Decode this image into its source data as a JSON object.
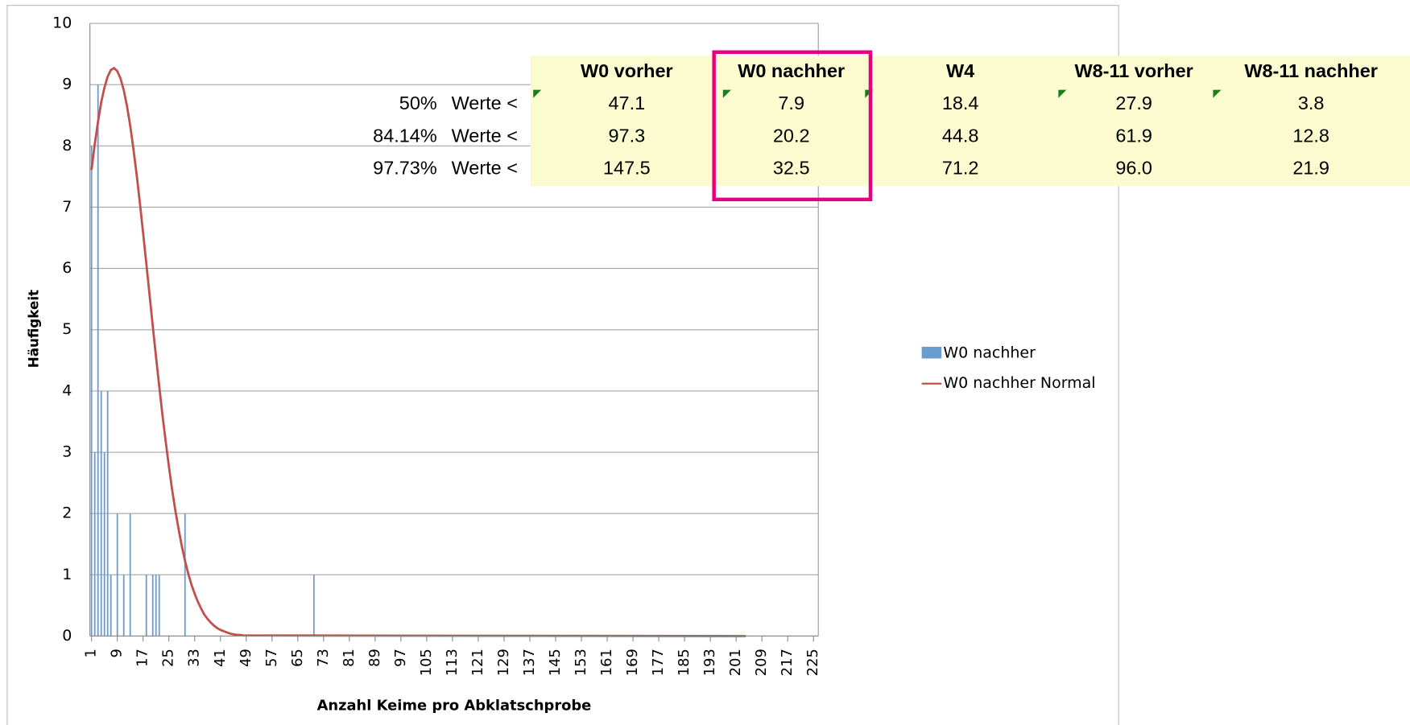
{
  "chart_data": {
    "type": "bar",
    "xlabel": "Anzahl Keime pro Abklatschprobe",
    "ylabel": "Häufigkeit",
    "xlim": [
      0.5,
      226.5
    ],
    "xticks": [
      1,
      9,
      17,
      25,
      33,
      41,
      49,
      57,
      65,
      73,
      81,
      89,
      97,
      105,
      113,
      121,
      129,
      137,
      145,
      153,
      161,
      169,
      177,
      185,
      193,
      201,
      209,
      217,
      225
    ],
    "ylim": [
      0,
      10
    ],
    "yticks": [
      0,
      1,
      2,
      3,
      4,
      5,
      6,
      7,
      8,
      9,
      10
    ],
    "grid": true,
    "legend": "right",
    "series": [
      {
        "name": "W0 nachher",
        "type": "bar",
        "color": "#6a9bd1",
        "x": [
          1,
          2,
          3,
          4,
          5,
          6,
          7,
          9,
          11,
          13,
          18,
          20,
          21,
          22,
          30,
          70
        ],
        "values": [
          8,
          3,
          9,
          4,
          3,
          4,
          1,
          2,
          1,
          2,
          1,
          1,
          1,
          1,
          2,
          1
        ]
      },
      {
        "name": "W0 nachher Normal",
        "type": "line",
        "color": "#c0504d",
        "x": [
          1,
          2,
          3,
          4,
          5,
          6,
          7,
          8,
          9,
          10,
          11,
          12,
          13,
          14,
          15,
          16,
          17,
          18,
          19,
          20,
          21,
          22,
          23,
          24,
          25,
          26,
          27,
          28,
          29,
          30,
          31,
          32,
          33,
          34,
          35,
          36,
          37,
          38,
          39,
          40,
          41,
          42,
          43,
          44,
          45,
          46,
          47,
          48,
          49,
          50,
          204
        ],
        "values": [
          7.61,
          8.03,
          8.39,
          8.71,
          8.95,
          9.13,
          9.24,
          9.27,
          9.22,
          9.1,
          8.91,
          8.65,
          8.33,
          7.95,
          7.53,
          7.07,
          6.58,
          6.08,
          5.57,
          5.06,
          4.56,
          4.08,
          3.61,
          3.18,
          2.77,
          2.39,
          2.05,
          1.75,
          1.47,
          1.23,
          1.02,
          0.84,
          0.69,
          0.56,
          0.45,
          0.35,
          0.28,
          0.22,
          0.17,
          0.13,
          0.1,
          0.08,
          0.06,
          0.04,
          0.03,
          0.02,
          0.02,
          0.01,
          0.01,
          0.01,
          0
        ]
      }
    ]
  },
  "table": {
    "header": [
      "W0 vorher",
      "W0 nachher",
      "W4",
      "W8-11 vorher",
      "W8-11 nachher"
    ],
    "rows": [
      [
        "50%",
        "Werte <",
        "47.1",
        "7.9",
        "18.4",
        "27.9",
        "3.8"
      ],
      [
        "84.14%",
        "Werte <",
        "97.3",
        "20.2",
        "44.8",
        "61.9",
        "12.8"
      ],
      [
        "97.73%",
        "Werte <",
        "147.5",
        "32.5",
        "71.2",
        "96.0",
        "21.9"
      ]
    ]
  }
}
